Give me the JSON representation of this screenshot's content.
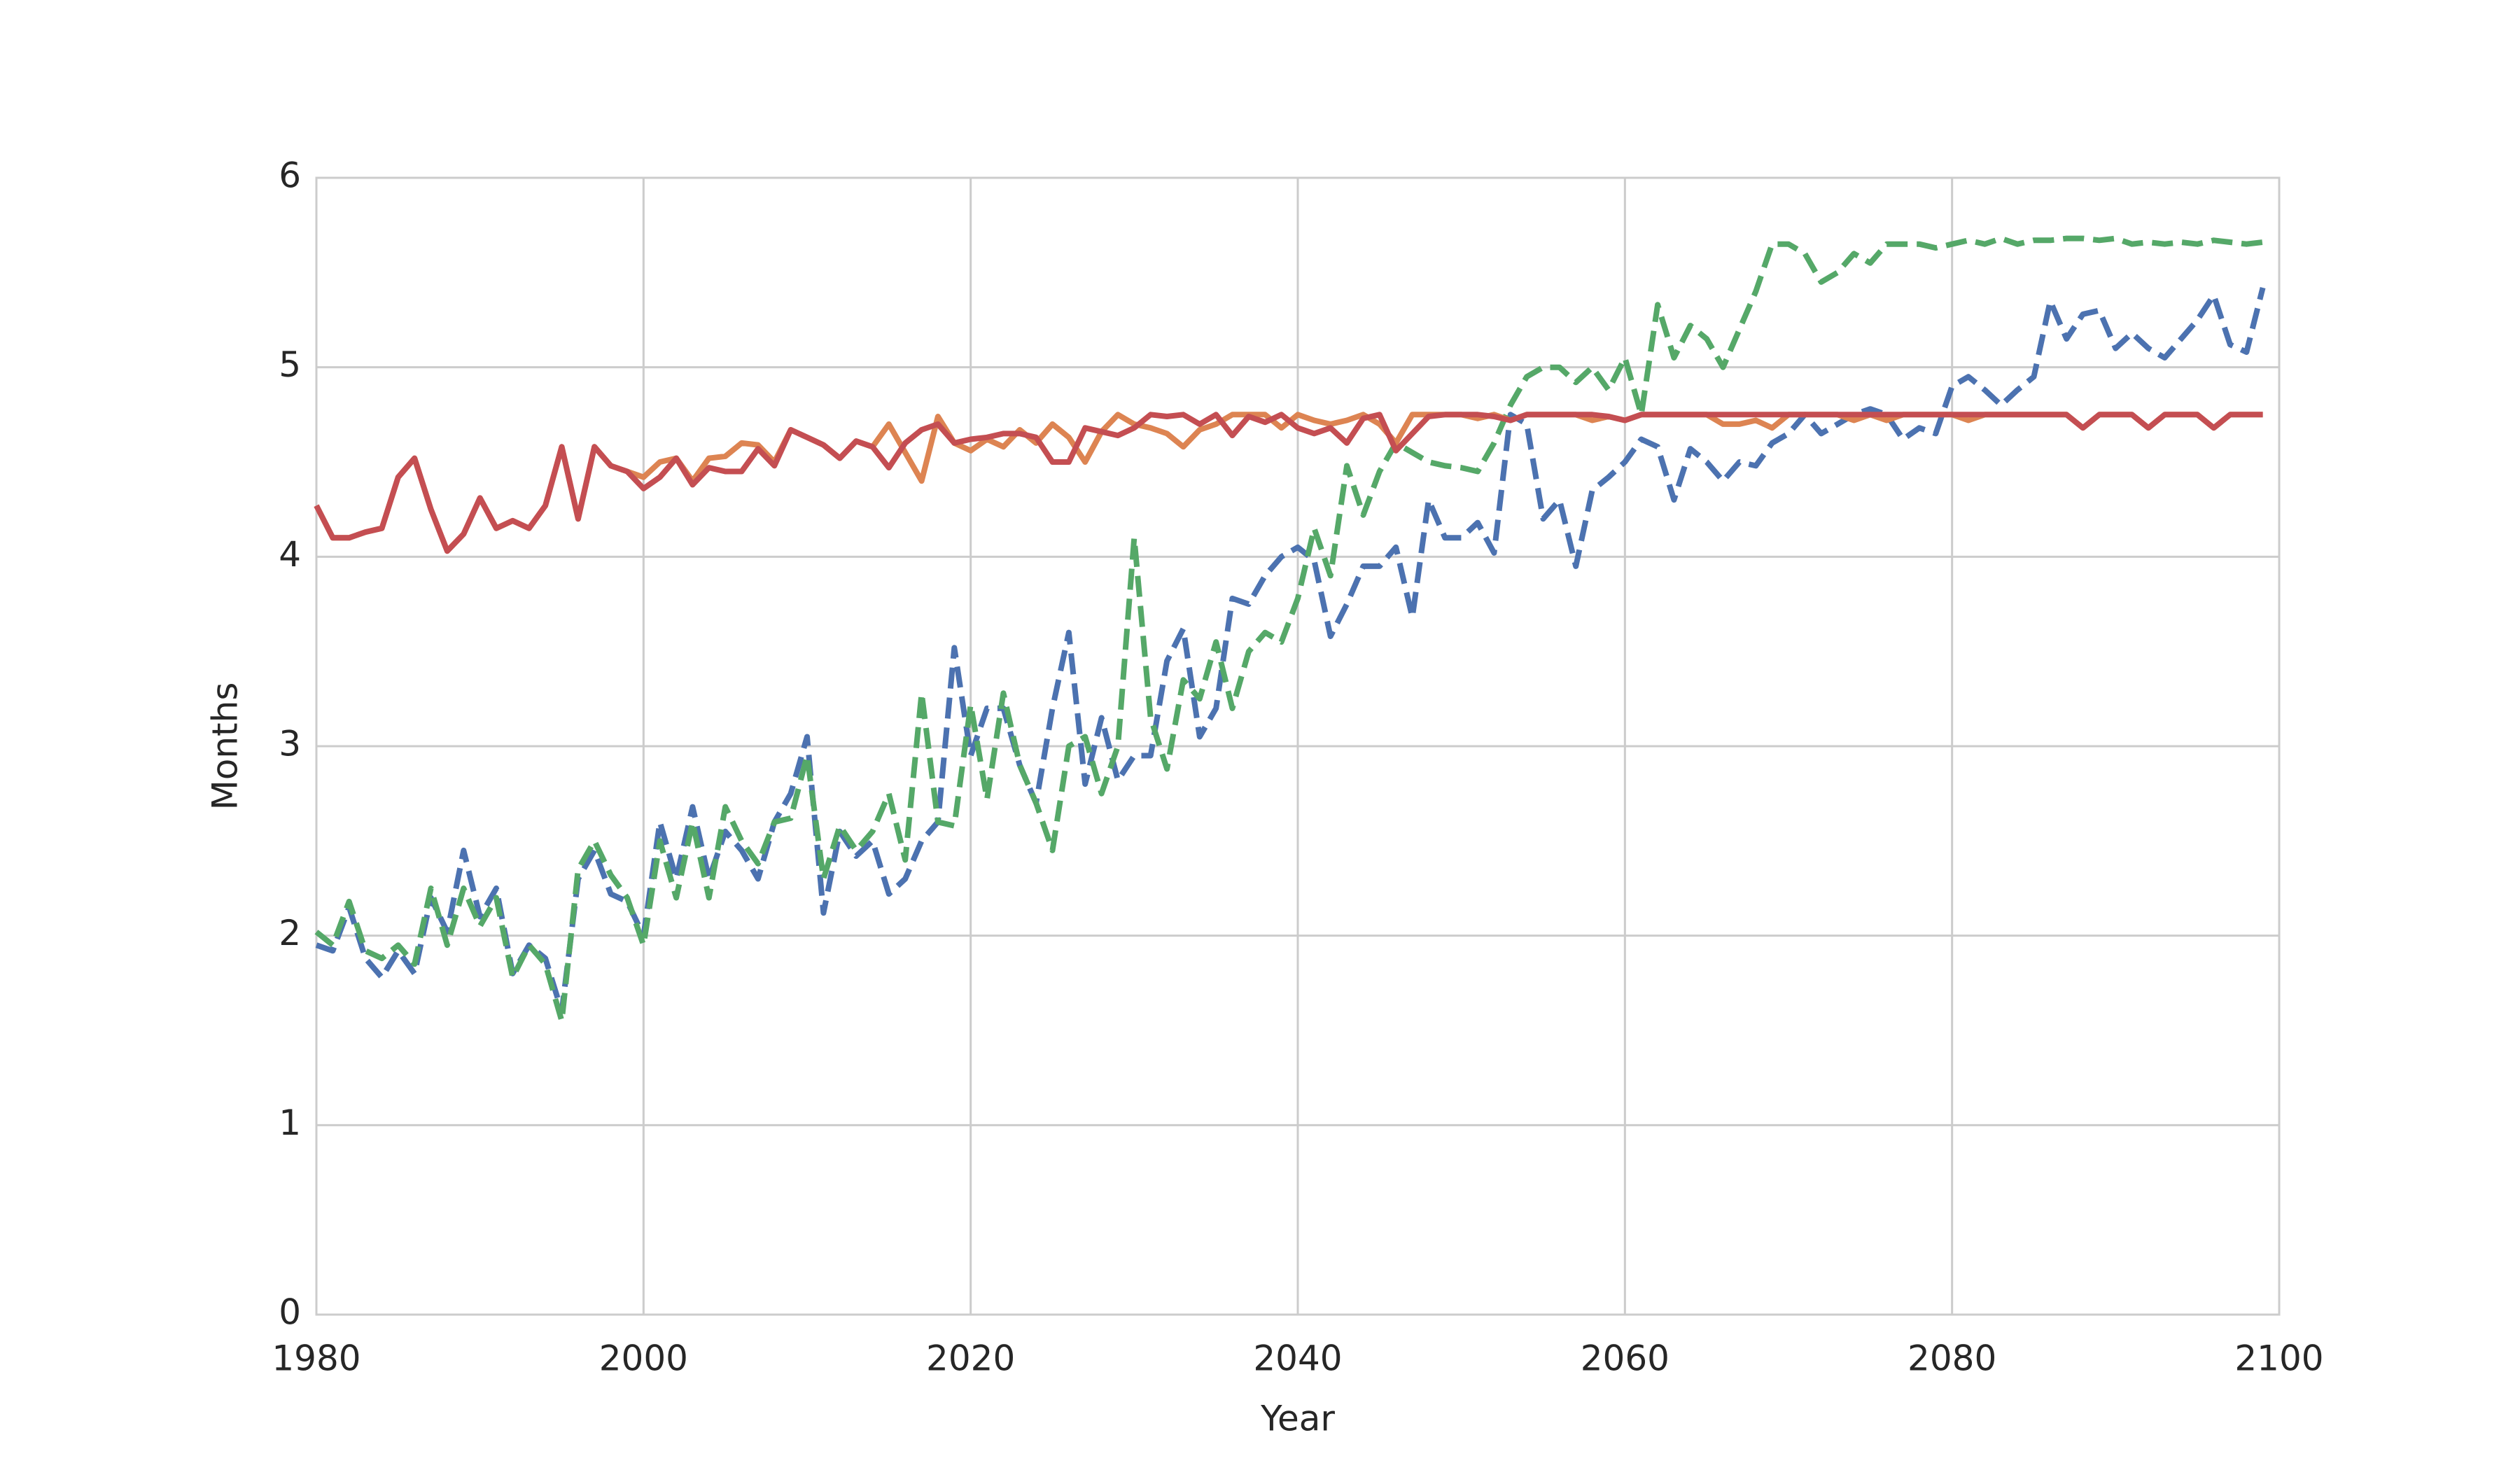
{
  "chart_data": {
    "type": "line",
    "xlabel": "Year",
    "ylabel": "Months",
    "xlim": [
      1980,
      2100
    ],
    "xticks": [
      1980,
      2000,
      2020,
      2040,
      2060,
      2080,
      2100
    ],
    "ylim": [
      0,
      6
    ],
    "yticks": [
      0,
      1,
      2,
      3,
      4,
      5,
      6
    ],
    "grid": true,
    "x": [
      1980,
      1981,
      1982,
      1983,
      1984,
      1985,
      1986,
      1987,
      1988,
      1989,
      1990,
      1991,
      1992,
      1993,
      1994,
      1995,
      1996,
      1997,
      1998,
      1999,
      2000,
      2001,
      2002,
      2003,
      2004,
      2005,
      2006,
      2007,
      2008,
      2009,
      2010,
      2011,
      2012,
      2013,
      2014,
      2015,
      2016,
      2017,
      2018,
      2019,
      2020,
      2021,
      2022,
      2023,
      2024,
      2025,
      2026,
      2027,
      2028,
      2029,
      2030,
      2031,
      2032,
      2033,
      2034,
      2035,
      2036,
      2037,
      2038,
      2039,
      2040,
      2041,
      2042,
      2043,
      2044,
      2045,
      2046,
      2047,
      2048,
      2049,
      2050,
      2051,
      2052,
      2053,
      2054,
      2055,
      2056,
      2057,
      2058,
      2059,
      2060,
      2061,
      2062,
      2063,
      2064,
      2065,
      2066,
      2067,
      2068,
      2069,
      2070,
      2071,
      2072,
      2073,
      2074,
      2075,
      2076,
      2077,
      2078,
      2079,
      2080,
      2081,
      2082,
      2083,
      2084,
      2085,
      2086,
      2087,
      2088,
      2089,
      2090,
      2091,
      2092,
      2093,
      2094,
      2095,
      2096,
      2097,
      2098,
      2099
    ],
    "series": [
      {
        "color": "#4c72b0",
        "dashed": true,
        "values": [
          1.95,
          1.92,
          2.15,
          1.88,
          1.78,
          1.92,
          1.8,
          2.2,
          2.02,
          2.45,
          2.1,
          2.25,
          1.8,
          1.95,
          1.88,
          1.6,
          2.3,
          2.45,
          2.22,
          2.18,
          2.0,
          2.6,
          2.3,
          2.68,
          2.3,
          2.55,
          2.45,
          2.3,
          2.6,
          2.75,
          3.05,
          2.12,
          2.55,
          2.42,
          2.5,
          2.22,
          2.3,
          2.5,
          2.6,
          3.52,
          2.95,
          3.2,
          3.2,
          2.9,
          2.7,
          3.2,
          3.6,
          2.8,
          3.15,
          2.82,
          2.95,
          2.95,
          3.45,
          3.62,
          3.05,
          3.2,
          3.78,
          3.75,
          3.9,
          4.0,
          4.05,
          3.98,
          3.58,
          3.75,
          3.95,
          3.95,
          4.05,
          3.68,
          4.3,
          4.1,
          4.1,
          4.18,
          4.02,
          4.75,
          4.7,
          4.2,
          4.3,
          3.95,
          4.35,
          4.42,
          4.5,
          4.62,
          4.58,
          4.3,
          4.57,
          4.5,
          4.4,
          4.5,
          4.48,
          4.6,
          4.65,
          4.75,
          4.65,
          4.7,
          4.75,
          4.78,
          4.75,
          4.62,
          4.68,
          4.65,
          4.9,
          4.95,
          4.88,
          4.8,
          4.88,
          4.95,
          5.35,
          5.15,
          5.28,
          5.3,
          5.1,
          5.18,
          5.1,
          5.05,
          5.15,
          5.25,
          5.38,
          5.12,
          5.08,
          5.42
        ]
      },
      {
        "color": "#55a868",
        "dashed": true,
        "values": [
          2.02,
          1.95,
          2.18,
          1.92,
          1.88,
          1.95,
          1.85,
          2.25,
          1.95,
          2.25,
          2.05,
          2.2,
          1.78,
          1.95,
          1.85,
          1.55,
          2.35,
          2.5,
          2.32,
          2.2,
          1.95,
          2.5,
          2.2,
          2.6,
          2.2,
          2.68,
          2.5,
          2.38,
          2.6,
          2.62,
          2.95,
          2.3,
          2.58,
          2.45,
          2.55,
          2.75,
          2.4,
          3.28,
          2.6,
          2.58,
          3.22,
          2.72,
          3.28,
          2.9,
          2.7,
          2.45,
          3.0,
          3.05,
          2.75,
          3.0,
          4.1,
          3.15,
          2.88,
          3.35,
          3.25,
          3.55,
          3.2,
          3.5,
          3.6,
          3.55,
          3.78,
          4.15,
          3.9,
          4.48,
          4.22,
          4.45,
          4.6,
          4.55,
          4.5,
          4.48,
          4.47,
          4.45,
          4.6,
          4.8,
          4.95,
          5.0,
          5.0,
          4.92,
          5.0,
          4.88,
          5.05,
          4.75,
          5.33,
          5.05,
          5.22,
          5.15,
          5.0,
          5.2,
          5.4,
          5.65,
          5.65,
          5.6,
          5.45,
          5.5,
          5.6,
          5.55,
          5.65,
          5.65,
          5.65,
          5.63,
          5.65,
          5.67,
          5.65,
          5.68,
          5.65,
          5.67,
          5.67,
          5.68,
          5.68,
          5.67,
          5.68,
          5.65,
          5.66,
          5.65,
          5.66,
          5.65,
          5.67,
          5.66,
          5.65,
          5.66
        ]
      },
      {
        "color": "#dd8452",
        "dashed": false,
        "values": [
          4.27,
          4.1,
          4.1,
          4.13,
          4.15,
          4.42,
          4.52,
          4.25,
          4.03,
          4.12,
          4.31,
          4.15,
          4.19,
          4.15,
          4.27,
          4.58,
          4.2,
          4.58,
          4.48,
          4.45,
          4.42,
          4.5,
          4.52,
          4.4,
          4.52,
          4.53,
          4.6,
          4.59,
          4.5,
          4.67,
          4.63,
          4.59,
          4.52,
          4.61,
          4.58,
          4.7,
          4.55,
          4.4,
          4.74,
          4.6,
          4.56,
          4.62,
          4.58,
          4.67,
          4.6,
          4.7,
          4.63,
          4.5,
          4.66,
          4.75,
          4.7,
          4.68,
          4.65,
          4.58,
          4.67,
          4.7,
          4.75,
          4.75,
          4.75,
          4.68,
          4.75,
          4.72,
          4.7,
          4.72,
          4.75,
          4.7,
          4.6,
          4.75,
          4.75,
          4.75,
          4.75,
          4.73,
          4.75,
          4.72,
          4.75,
          4.75,
          4.75,
          4.75,
          4.72,
          4.74,
          4.72,
          4.75,
          4.75,
          4.75,
          4.75,
          4.75,
          4.7,
          4.7,
          4.72,
          4.68,
          4.75,
          4.75,
          4.75,
          4.75,
          4.72,
          4.75,
          4.72,
          4.75,
          4.75,
          4.75,
          4.75,
          4.72,
          4.75,
          4.75,
          4.75,
          4.75,
          4.75,
          4.75,
          4.68,
          4.75,
          4.75,
          4.75,
          4.68,
          4.75,
          4.75,
          4.75,
          4.68,
          4.75,
          4.75,
          4.75
        ]
      },
      {
        "color": "#c44e52",
        "dashed": false,
        "values": [
          4.27,
          4.1,
          4.1,
          4.13,
          4.15,
          4.42,
          4.52,
          4.25,
          4.03,
          4.12,
          4.31,
          4.15,
          4.19,
          4.15,
          4.27,
          4.58,
          4.2,
          4.58,
          4.48,
          4.45,
          4.36,
          4.42,
          4.52,
          4.38,
          4.47,
          4.45,
          4.45,
          4.57,
          4.48,
          4.67,
          4.63,
          4.59,
          4.52,
          4.61,
          4.58,
          4.47,
          4.6,
          4.67,
          4.7,
          4.6,
          4.62,
          4.63,
          4.65,
          4.65,
          4.63,
          4.5,
          4.5,
          4.68,
          4.66,
          4.64,
          4.68,
          4.75,
          4.74,
          4.75,
          4.7,
          4.75,
          4.64,
          4.74,
          4.71,
          4.75,
          4.68,
          4.65,
          4.68,
          4.6,
          4.73,
          4.75,
          4.56,
          4.65,
          4.74,
          4.75,
          4.75,
          4.75,
          4.74,
          4.72,
          4.75,
          4.75,
          4.75,
          4.75,
          4.75,
          4.74,
          4.72,
          4.75,
          4.75,
          4.75,
          4.75,
          4.75,
          4.75,
          4.75,
          4.75,
          4.75,
          4.75,
          4.75,
          4.75,
          4.75,
          4.75,
          4.75,
          4.75,
          4.75,
          4.75,
          4.75,
          4.75,
          4.75,
          4.75,
          4.75,
          4.75,
          4.75,
          4.75,
          4.75,
          4.68,
          4.75,
          4.75,
          4.75,
          4.68,
          4.75,
          4.75,
          4.75,
          4.68,
          4.75,
          4.75,
          4.75
        ]
      }
    ]
  }
}
